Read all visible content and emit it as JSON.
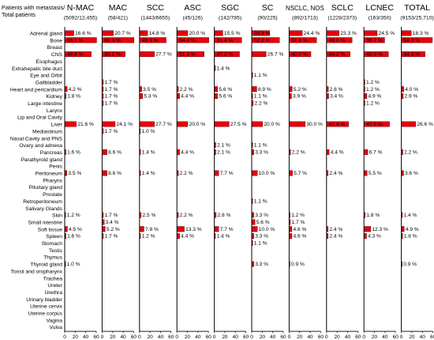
{
  "chart_data": {
    "type": "bar",
    "corner_label": [
      "Patients with metastasis/",
      "Total patients"
    ],
    "panels": [
      {
        "name": "N-MAC",
        "n": "(5092/12,455)"
      },
      {
        "name": "MAC",
        "n": "(58/421)"
      },
      {
        "name": "SCC",
        "n": "(1443/6655)"
      },
      {
        "name": "ASC",
        "n": "(45/126)"
      },
      {
        "name": "SGC",
        "n": "(142/785)"
      },
      {
        "name": "SC",
        "n": "(90/225)"
      },
      {
        "name": "NSCLC, NOS",
        "n": "(892/1713)"
      },
      {
        "name": "SCLC",
        "n": "(1228/2373)"
      },
      {
        "name": "LCNEC",
        "n": "(163/350)"
      },
      {
        "name": "TOTAL",
        "n": "(9153/25,710)"
      }
    ],
    "categories": [
      "Adrenal gland",
      "Bone",
      "Breast",
      "CNS",
      "Esophagus",
      "Extrahepatic bile duct",
      "Eye and Orbit",
      "Gallbladder",
      "Heart and pericardium",
      "Kidney",
      "Large intestine",
      "Larynx",
      "Lip and Oral Cavity",
      "Liver",
      "Mediastinum",
      "Nasal Cavity and PNS",
      "Ovary and adnexa",
      "Pancreas",
      "Parathyroid gland",
      "Penis",
      "Peritoneum",
      "Pharynx",
      "Pituitary gland",
      "Prostate",
      "Retroperitoneum",
      "Salivary Glands",
      "Skin",
      "Small intestine",
      "Soft tissue",
      "Spleen",
      "Stomach",
      "Testis",
      "Thymus",
      "Thyroid gland",
      "Tonsil and oropharynx",
      "Trachea",
      "Ureter",
      "Urethra",
      "Urinary bladder",
      "Uterine cervix",
      "Uterine corpus",
      "Vagina",
      "Vulva"
    ],
    "values": [
      [
        16.6,
        65.1,
        null,
        49.8,
        null,
        null,
        null,
        null,
        4.2,
        1.8,
        null,
        null,
        null,
        21.6,
        null,
        null,
        null,
        1.6,
        null,
        null,
        3.5,
        null,
        null,
        null,
        null,
        null,
        1.2,
        null,
        4.5,
        1.6,
        null,
        null,
        null,
        1.0,
        null,
        null,
        null,
        null,
        null,
        null,
        null,
        null,
        null
      ],
      [
        20.7,
        60.3,
        null,
        43.1,
        null,
        null,
        null,
        1.7,
        1.7,
        1.7,
        1.7,
        null,
        null,
        24.1,
        1.7,
        null,
        null,
        8.6,
        null,
        null,
        8.6,
        null,
        null,
        null,
        null,
        null,
        1.7,
        3.4,
        5.2,
        1.7,
        null,
        null,
        null,
        null,
        null,
        null,
        null,
        null,
        null,
        null,
        null,
        null,
        null
      ],
      [
        14.8,
        49.9,
        null,
        27.7,
        null,
        null,
        null,
        null,
        3.5,
        5.3,
        null,
        null,
        null,
        27.7,
        1.0,
        null,
        null,
        1.4,
        null,
        null,
        1.4,
        null,
        null,
        null,
        null,
        null,
        2.5,
        null,
        7.8,
        1.2,
        null,
        null,
        null,
        null,
        null,
        null,
        null,
        null,
        null,
        null,
        null,
        null,
        null
      ],
      [
        20.0,
        64.4,
        null,
        51.1,
        null,
        null,
        null,
        null,
        2.2,
        4.4,
        null,
        null,
        null,
        20.0,
        null,
        null,
        null,
        4.4,
        null,
        null,
        2.2,
        null,
        null,
        null,
        null,
        null,
        2.2,
        null,
        13.3,
        4.4,
        null,
        null,
        null,
        null,
        null,
        null,
        null,
        null,
        null,
        null,
        null,
        null,
        null
      ],
      [
        15.5,
        51.4,
        null,
        47.2,
        null,
        1.4,
        null,
        null,
        5.6,
        5.6,
        null,
        null,
        null,
        27.5,
        null,
        null,
        2.1,
        2.1,
        null,
        null,
        7.7,
        null,
        null,
        null,
        null,
        null,
        2.8,
        null,
        7.7,
        1.4,
        null,
        null,
        null,
        null,
        null,
        null,
        null,
        null,
        null,
        null,
        null,
        null,
        null
      ],
      [
        33.3,
        52.2,
        null,
        26.7,
        null,
        null,
        1.1,
        null,
        8.9,
        1.1,
        2.2,
        null,
        null,
        20.0,
        null,
        null,
        1.1,
        3.3,
        null,
        null,
        10.0,
        null,
        null,
        null,
        1.1,
        null,
        3.3,
        5.6,
        10.0,
        3.3,
        1.1,
        null,
        null,
        3.3,
        null,
        null,
        null,
        null,
        null,
        null,
        null,
        null,
        null
      ],
      [
        24.4,
        51.6,
        null,
        40.7,
        null,
        null,
        null,
        null,
        5.2,
        3.9,
        null,
        null,
        null,
        30.0,
        null,
        null,
        null,
        2.2,
        null,
        null,
        5.7,
        null,
        null,
        null,
        null,
        null,
        1.2,
        1.7,
        4.6,
        4.6,
        null,
        null,
        null,
        0.9,
        null,
        null,
        null,
        null,
        null,
        null,
        null,
        null,
        null
      ],
      [
        23.3,
        48.0,
        null,
        44.2,
        null,
        null,
        null,
        null,
        2.8,
        3.4,
        null,
        null,
        null,
        41.4,
        null,
        null,
        null,
        4.4,
        null,
        null,
        2.4,
        null,
        null,
        null,
        null,
        null,
        null,
        null,
        2.4,
        2.4,
        null,
        null,
        null,
        null,
        null,
        null,
        null,
        null,
        null,
        null,
        null,
        null,
        null
      ],
      [
        24.5,
        38.7,
        null,
        46.0,
        null,
        null,
        null,
        1.2,
        1.2,
        4.9,
        1.2,
        null,
        null,
        47.9,
        null,
        null,
        null,
        6.7,
        null,
        null,
        5.5,
        null,
        null,
        null,
        null,
        null,
        1.8,
        null,
        12.3,
        4.3,
        null,
        null,
        null,
        null,
        null,
        null,
        null,
        null,
        null,
        null,
        null,
        null,
        null
      ],
      [
        18.3,
        58.3,
        null,
        44.3,
        null,
        null,
        null,
        null,
        4.0,
        2.9,
        null,
        null,
        null,
        26.6,
        null,
        null,
        null,
        2.2,
        null,
        null,
        3.6,
        null,
        null,
        null,
        null,
        null,
        1.4,
        null,
        4.9,
        1.8,
        null,
        null,
        null,
        0.9,
        null,
        null,
        null,
        null,
        null,
        null,
        null,
        null,
        null
      ]
    ],
    "unit": "%",
    "xlim": [
      0,
      60
    ],
    "xticks": [
      "0",
      "20",
      "40",
      "60"
    ],
    "bar_color": "#e8000b",
    "label_color_inside": "#ffffff",
    "label_color_outside": "#000000",
    "axis_color": "#000000"
  }
}
